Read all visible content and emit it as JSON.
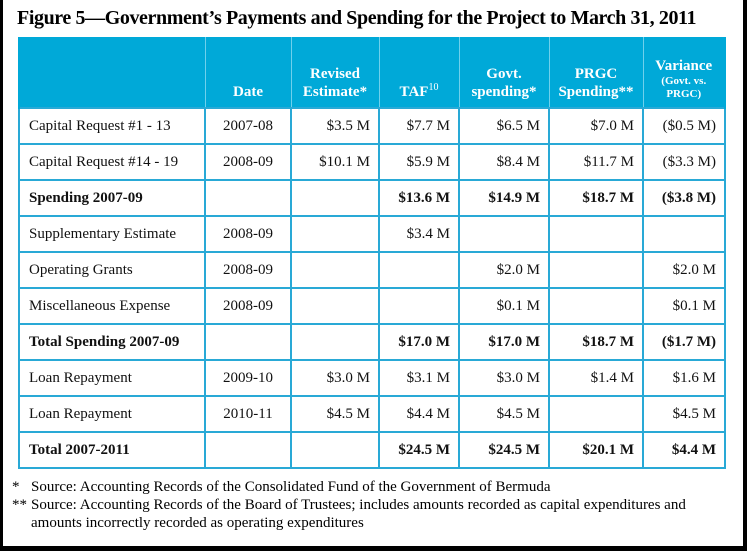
{
  "title": "Figure 5—Government’s Payments and Spending for the Project to March 31, 2011",
  "header": {
    "item": "",
    "date": "Date",
    "revised_1": "Revised",
    "revised_2": "Estimate*",
    "taf": "TAF",
    "taf_sup": "10",
    "govt_1": "Govt.",
    "govt_2": "spending*",
    "prgc_1": "PRGC",
    "prgc_2": "Spending**",
    "variance_1": "Variance",
    "variance_2": "(Govt. vs.",
    "variance_3": "PRGC)"
  },
  "rows": [
    {
      "item": "Capital Request #1 - 13",
      "date": "2007-08",
      "revised": "$3.5 M",
      "taf": "$7.7 M",
      "govt": "$6.5 M",
      "prgc": "$7.0 M",
      "variance": "($0.5 M)",
      "total": false
    },
    {
      "item": "Capital Request #14 - 19",
      "date": "2008-09",
      "revised": "$10.1 M",
      "taf": "$5.9 M",
      "govt": "$8.4 M",
      "prgc": "$11.7 M",
      "variance": "($3.3 M)",
      "total": false
    },
    {
      "item": "Spending 2007-09",
      "date": "",
      "revised": "",
      "taf": "$13.6 M",
      "govt": "$14.9 M",
      "prgc": "$18.7 M",
      "variance": "($3.8 M)",
      "total": true
    },
    {
      "item": "Supplementary Estimate",
      "date": "2008-09",
      "revised": "",
      "taf": "$3.4 M",
      "govt": "",
      "prgc": "",
      "variance": "",
      "total": false
    },
    {
      "item": "Operating Grants",
      "date": "2008-09",
      "revised": "",
      "taf": "",
      "govt": "$2.0 M",
      "prgc": "",
      "variance": "$2.0 M",
      "total": false
    },
    {
      "item": "Miscellaneous Expense",
      "date": "2008-09",
      "revised": "",
      "taf": "",
      "govt": "$0.1 M",
      "prgc": "",
      "variance": "$0.1 M",
      "total": false
    },
    {
      "item": "Total Spending 2007-09",
      "date": "",
      "revised": "",
      "taf": "$17.0 M",
      "govt": "$17.0 M",
      "prgc": "$18.7 M",
      "variance": "($1.7 M)",
      "total": true
    },
    {
      "item": "Loan Repayment",
      "date": "2009-10",
      "revised": "$3.0 M",
      "taf": "$3.1 M",
      "govt": "$3.0 M",
      "prgc": "$1.4 M",
      "variance": "$1.6 M",
      "total": false
    },
    {
      "item": "Loan Repayment",
      "date": "2010-11",
      "revised": "$4.5 M",
      "taf": "$4.4 M",
      "govt": "$4.5 M",
      "prgc": "",
      "variance": "$4.5 M",
      "total": false
    },
    {
      "item": "Total 2007-2011",
      "date": "",
      "revised": "",
      "taf": "$24.5 M",
      "govt": "$24.5 M",
      "prgc": "$20.1 M",
      "variance": "$4.4 M",
      "total": true
    }
  ],
  "notes": [
    {
      "mark": "*",
      "text": "Source: Accounting Records of the Consolidated Fund of the Government of Bermuda"
    },
    {
      "mark": "**",
      "text": "Source: Accounting Records of the Board of Trustees; includes amounts recorded as capital expenditures and amounts incorrectly recorded as operating expenditures"
    }
  ],
  "colors": {
    "header_bg": "#00a9d8",
    "grid": "#29a9d6"
  }
}
